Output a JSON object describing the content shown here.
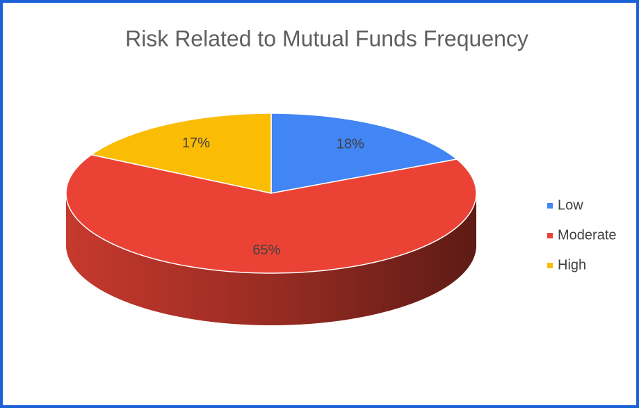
{
  "chart_data": {
    "type": "pie",
    "title": "Risk Related to Mutual Funds Frequency",
    "categories": [
      "Low",
      "Moderate",
      "High"
    ],
    "values": [
      18,
      65,
      17
    ],
    "value_labels": [
      "18%",
      "65%",
      "17%"
    ],
    "colors": [
      "#4285f4",
      "#ea4335",
      "#fbbc04"
    ],
    "legend": "right",
    "style": "3d"
  }
}
